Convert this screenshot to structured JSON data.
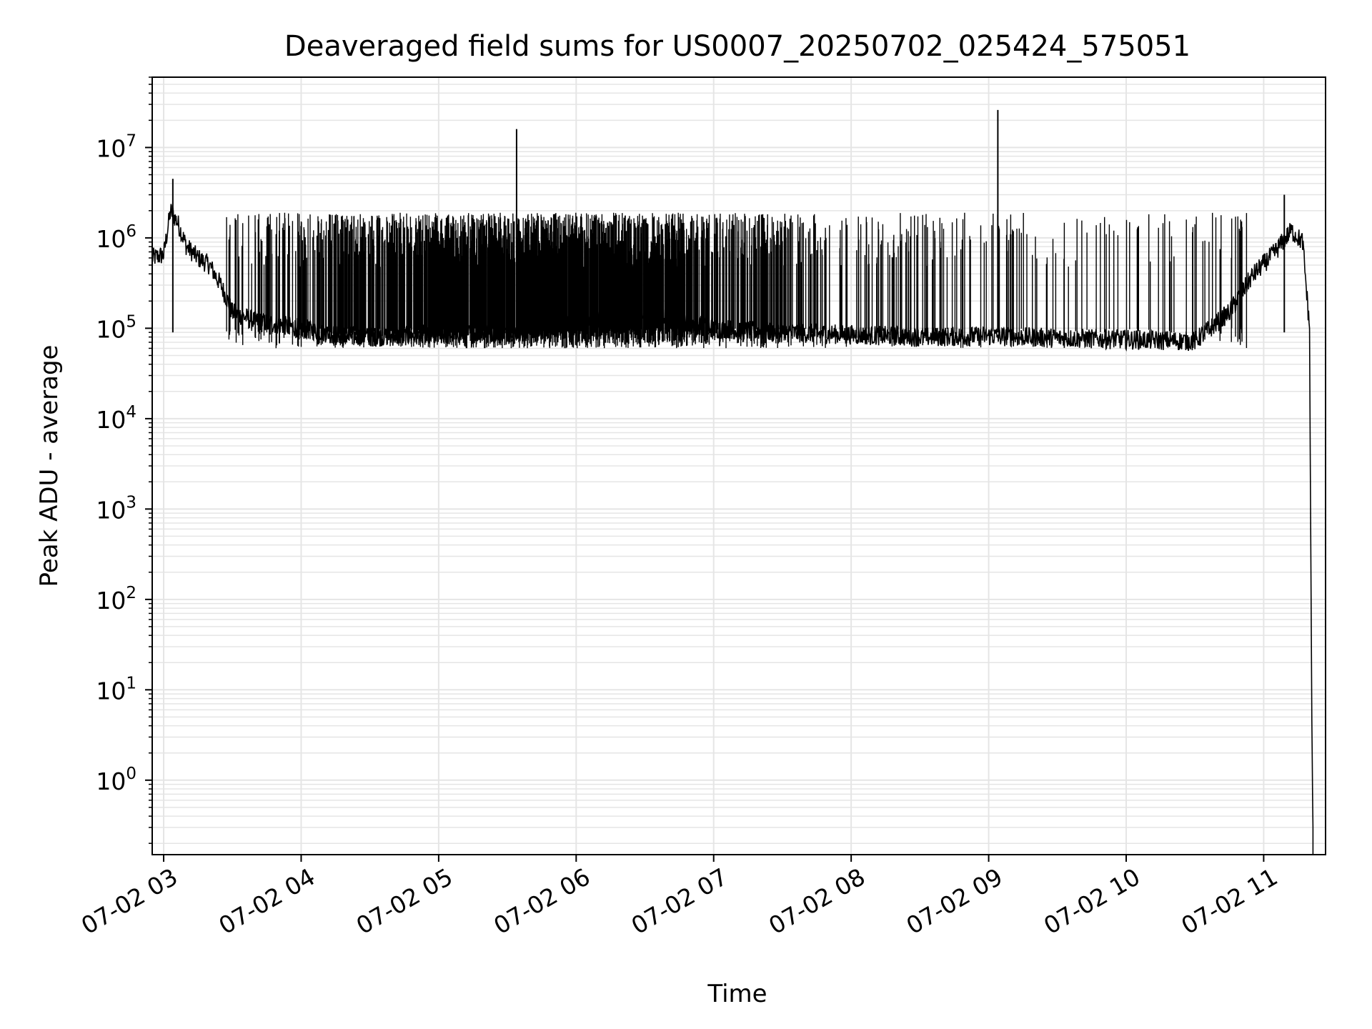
{
  "chart_data": {
    "type": "line",
    "title": "Deaveraged field sums for US0007_20250702_025424_575051",
    "xlabel": "Time",
    "ylabel": "Peak ADU - average",
    "yscale": "log",
    "ylim": [
      0.15,
      60000000
    ],
    "xlim": [
      "2025-07-02T02:55:00",
      "2025-07-02T11:27:00"
    ],
    "x_ticks": [
      {
        "value": "2025-07-02T03:00:00",
        "label": "07-02 03"
      },
      {
        "value": "2025-07-02T04:00:00",
        "label": "07-02 04"
      },
      {
        "value": "2025-07-02T05:00:00",
        "label": "07-02 05"
      },
      {
        "value": "2025-07-02T06:00:00",
        "label": "07-02 06"
      },
      {
        "value": "2025-07-02T07:00:00",
        "label": "07-02 07"
      },
      {
        "value": "2025-07-02T08:00:00",
        "label": "07-02 08"
      },
      {
        "value": "2025-07-02T09:00:00",
        "label": "07-02 09"
      },
      {
        "value": "2025-07-02T10:00:00",
        "label": "07-02 10"
      },
      {
        "value": "2025-07-02T11:00:00",
        "label": "07-02 11"
      }
    ],
    "y_ticks": [
      {
        "value": 1,
        "base": "10",
        "exp": "0"
      },
      {
        "value": 10,
        "base": "10",
        "exp": "1"
      },
      {
        "value": 100,
        "base": "10",
        "exp": "2"
      },
      {
        "value": 1000,
        "base": "10",
        "exp": "3"
      },
      {
        "value": 10000,
        "base": "10",
        "exp": "4"
      },
      {
        "value": 100000,
        "base": "10",
        "exp": "5"
      },
      {
        "value": 1000000,
        "base": "10",
        "exp": "6"
      },
      {
        "value": 10000000,
        "base": "10",
        "exp": "7"
      }
    ],
    "grid": true,
    "line_color": "#000000",
    "grid_color": "#e5e5e5",
    "series": [
      {
        "x": [
          "2025-07-02T02:55:00",
          "2025-07-02T03:00:00",
          "2025-07-02T03:03:00",
          "2025-07-02T03:06:00",
          "2025-07-02T03:10:00",
          "2025-07-02T03:15:00",
          "2025-07-02T03:20:00",
          "2025-07-02T03:25:00",
          "2025-07-02T03:30:00",
          "2025-07-02T03:40:00",
          "2025-07-02T03:50:00",
          "2025-07-02T04:00:00",
          "2025-07-02T04:15:00",
          "2025-07-02T04:30:00",
          "2025-07-02T05:00:00",
          "2025-07-02T05:30:00",
          "2025-07-02T06:00:00",
          "2025-07-02T06:30:00",
          "2025-07-02T07:00:00",
          "2025-07-02T07:30:00",
          "2025-07-02T08:00:00",
          "2025-07-02T08:30:00",
          "2025-07-02T09:00:00",
          "2025-07-02T09:30:00",
          "2025-07-02T10:00:00",
          "2025-07-02T10:30:00",
          "2025-07-02T10:45:00",
          "2025-07-02T10:55:00",
          "2025-07-02T11:05:00",
          "2025-07-02T11:12:00",
          "2025-07-02T11:17:00",
          "2025-07-02T11:20:00",
          "2025-07-02T11:21:00",
          "2025-07-02T11:21:30"
        ],
        "values": [
          600000,
          650000,
          2000000,
          1500000,
          800000,
          600000,
          500000,
          300000,
          150000,
          120000,
          110000,
          100000,
          85000,
          80000,
          85000,
          90000,
          120000,
          150000,
          100000,
          90000,
          85000,
          80000,
          82000,
          78000,
          75000,
          72000,
          150000,
          380000,
          700000,
          1200000,
          900000,
          100000,
          5,
          0.3
        ]
      }
    ],
    "spikes": [
      {
        "x": "2025-07-02T03:04:00",
        "y": 4500000
      },
      {
        "x": "2025-07-02T05:34:00",
        "y": 16000000
      },
      {
        "x": "2025-07-02T09:04:00",
        "y": 26000000
      },
      {
        "x": "2025-07-02T11:09:00",
        "y": 3000000
      }
    ],
    "spike_band": {
      "from": "2025-07-02T03:27:00",
      "to": "2025-07-02T10:53:00",
      "upper": 1900000
    }
  }
}
